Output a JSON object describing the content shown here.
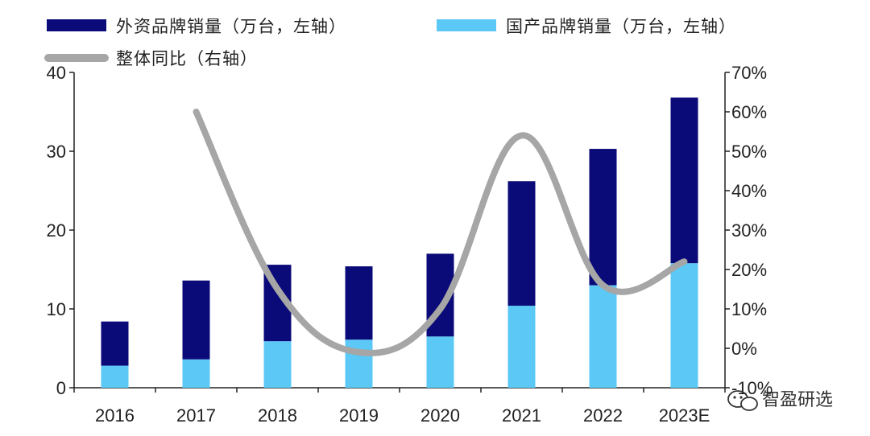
{
  "chart_data": {
    "type": "bar",
    "categories": [
      "2016",
      "2017",
      "2018",
      "2019",
      "2020",
      "2021",
      "2022",
      "2023E"
    ],
    "series": [
      {
        "name": "国产品牌销量（万台，左轴）",
        "values": [
          2.8,
          3.6,
          5.9,
          6.1,
          6.5,
          10.4,
          13.0,
          15.8
        ],
        "axis": "left",
        "type": "bar",
        "stack": "total"
      },
      {
        "name": "外资品牌销量（万台，左轴）",
        "values": [
          5.6,
          10.0,
          9.7,
          9.3,
          10.5,
          15.8,
          17.3,
          21.0
        ],
        "axis": "left",
        "type": "bar",
        "stack": "total"
      },
      {
        "name": "整体同比（右轴）",
        "values": [
          null,
          0.6,
          0.15,
          -0.01,
          0.1,
          0.54,
          0.16,
          0.22
        ],
        "axis": "right",
        "type": "line"
      }
    ],
    "y_left": {
      "min": 0,
      "max": 40,
      "ticks": [
        "0",
        "10",
        "20",
        "30",
        "40"
      ]
    },
    "y_right": {
      "min": -0.1,
      "max": 0.7,
      "ticks": [
        "-10%",
        "0%",
        "10%",
        "20%",
        "30%",
        "40%",
        "50%",
        "60%",
        "70%"
      ]
    },
    "colors": {
      "foreign": "#0a0a78",
      "domestic": "#5bc8f5",
      "yoy": "#a6a6a6"
    },
    "legend_position": "top",
    "grid": false
  },
  "watermark": {
    "text": "智盈研选"
  }
}
